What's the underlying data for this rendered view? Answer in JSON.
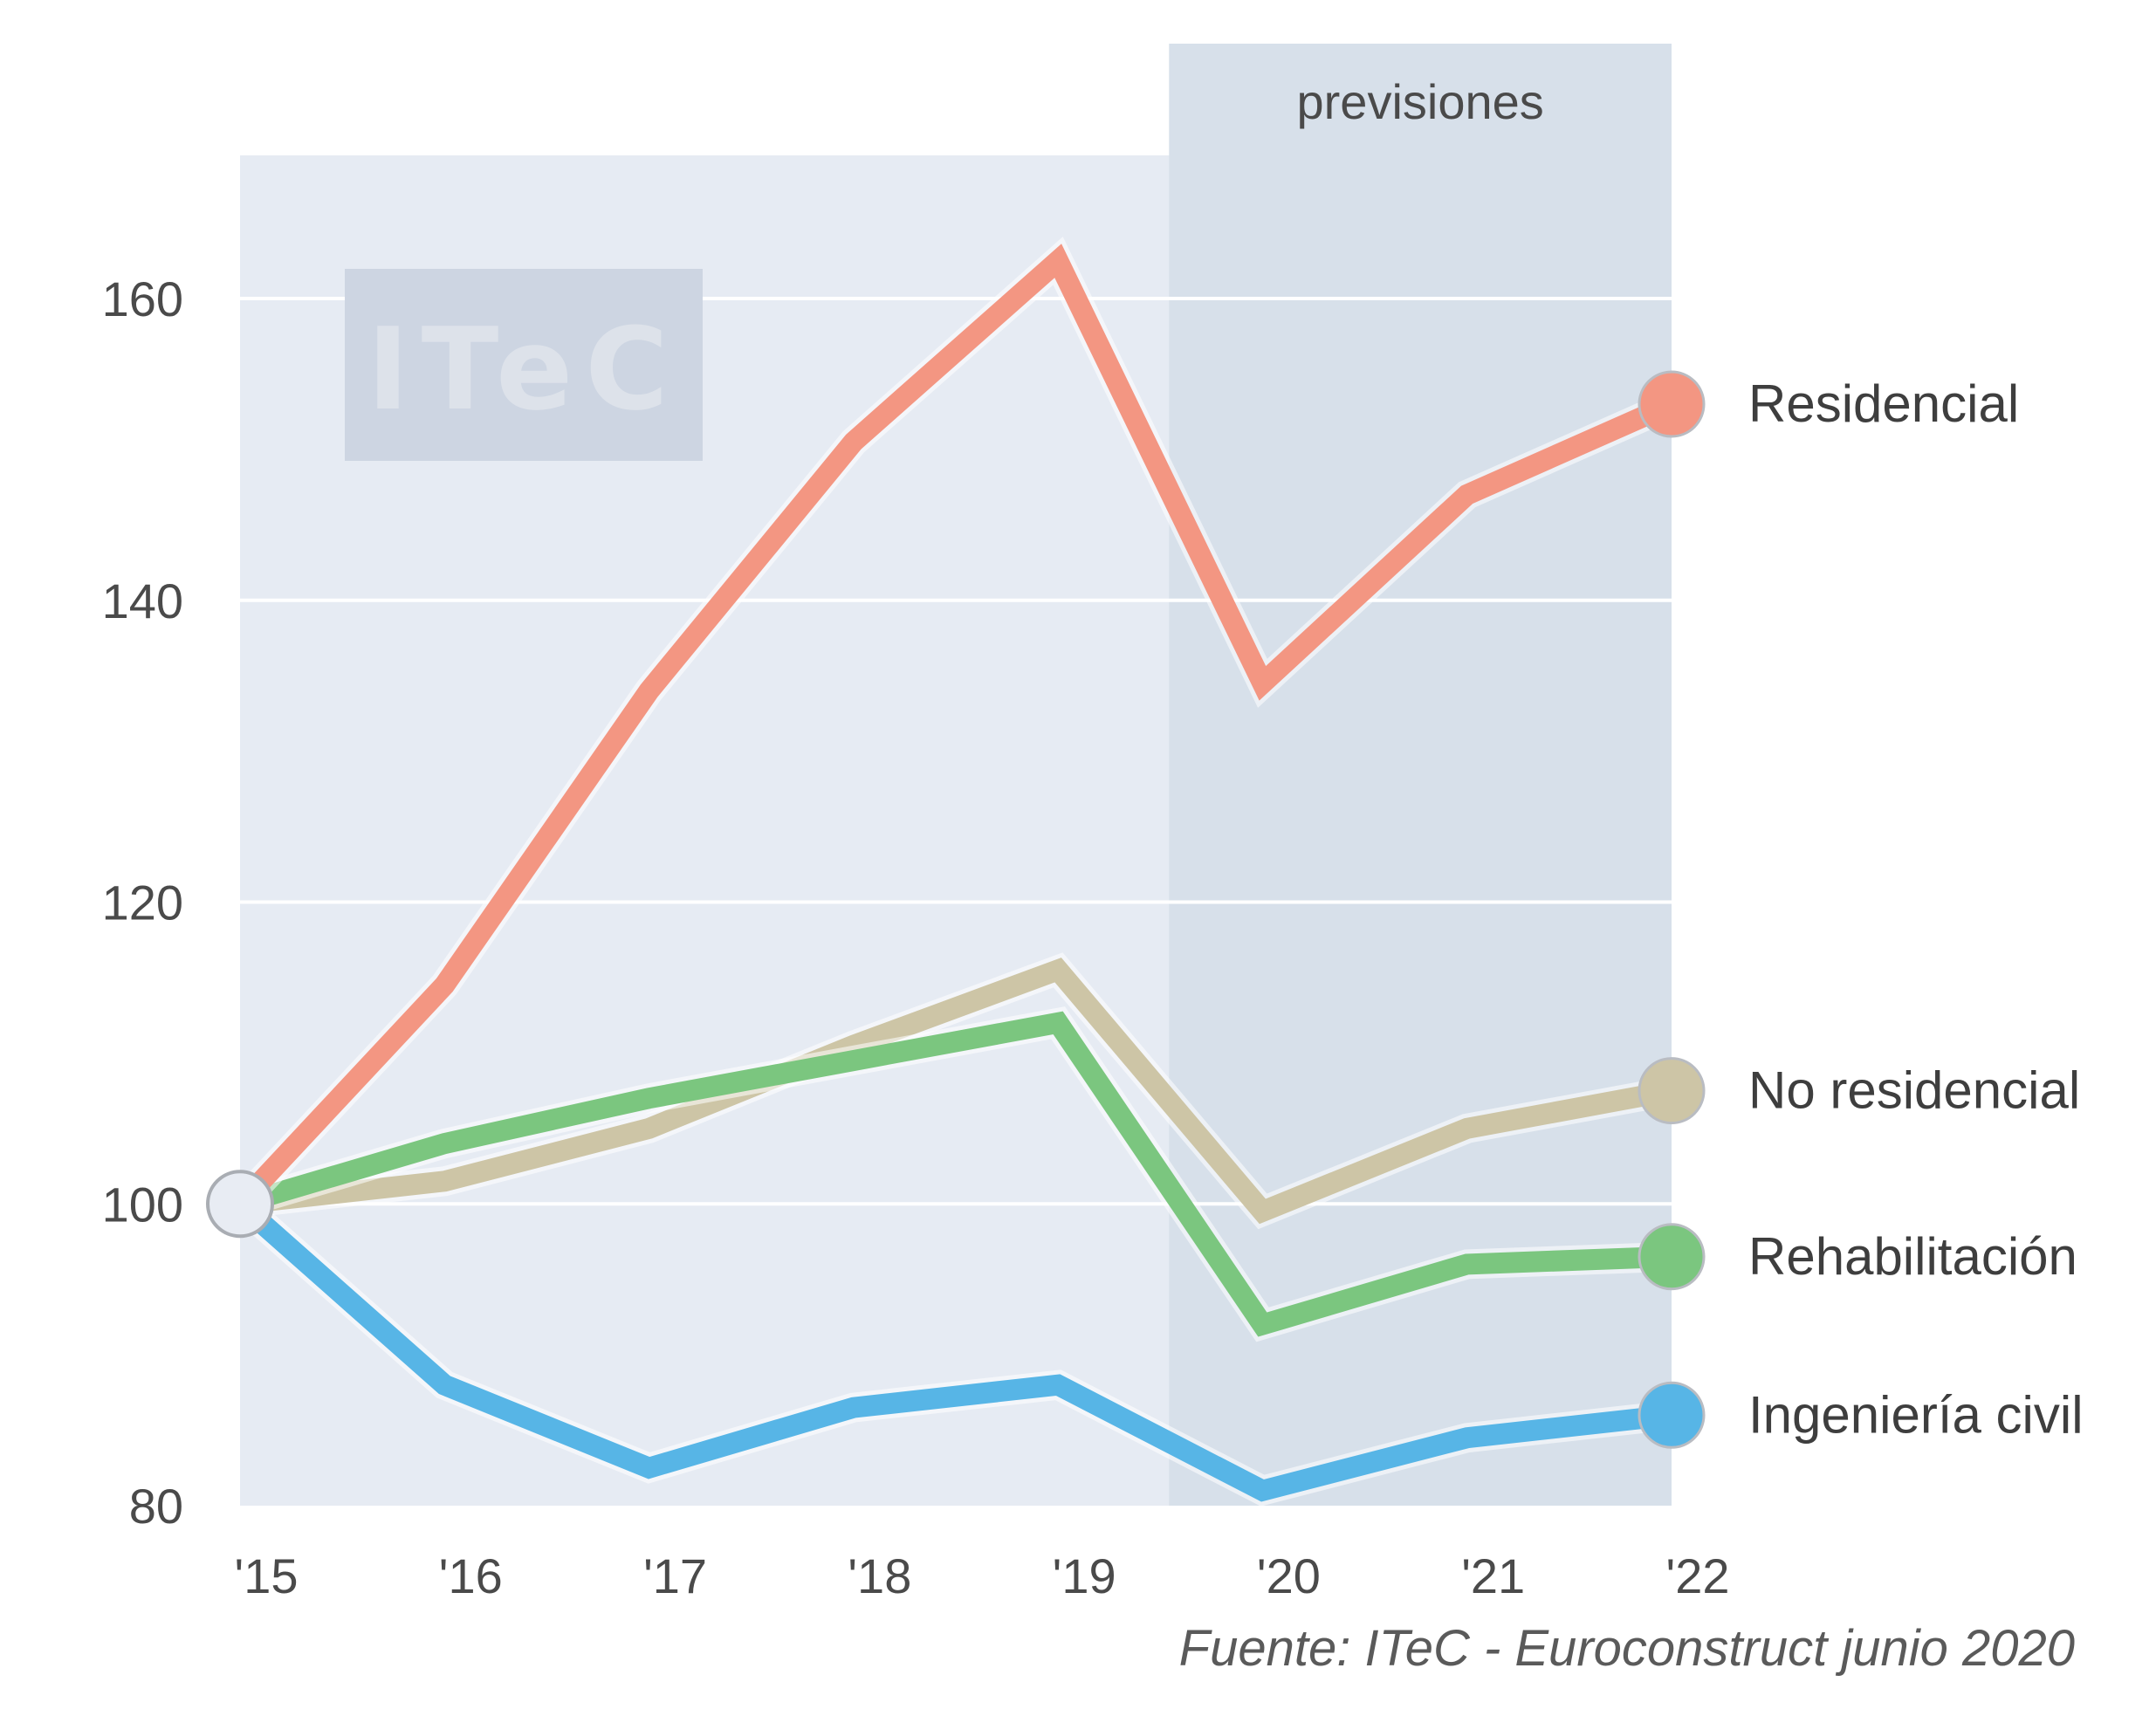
{
  "chart_data": {
    "type": "line",
    "x": [
      "'15",
      "'16",
      "'17",
      "'18",
      "'19",
      "'20",
      "'21",
      "'22"
    ],
    "yticks": [
      80,
      100,
      120,
      140,
      160
    ],
    "ylim": [
      80,
      170
    ],
    "grid": true,
    "forecast": {
      "label": "previsiones",
      "from": "'19",
      "to": "'22"
    },
    "series": [
      {
        "name": "Residencial",
        "color": "#f39682",
        "values": [
          100,
          114.5,
          134,
          150.5,
          162.5,
          134.5,
          147,
          153
        ]
      },
      {
        "name": "No residencial",
        "color": "#cdc5a6",
        "values": [
          100,
          101.5,
          105,
          110.5,
          115.5,
          99.5,
          105,
          107.5
        ]
      },
      {
        "name": "Rehabilitación",
        "color": "#7bc67f",
        "values": [
          100,
          104,
          107,
          109.5,
          112,
          92,
          96,
          96.5
        ]
      },
      {
        "name": "Ingeniería civil",
        "color": "#57b5e6",
        "values": [
          100,
          88,
          82.5,
          86.5,
          88,
          81,
          84.5,
          86
        ]
      }
    ],
    "origin_marker_color": "#e8ecf3",
    "watermark": "ITeC",
    "source": "Fuente: ITeC - Euroconstruct junio 2020",
    "colors": {
      "plot_bg": "#e6ebf3",
      "forecast_bg": "#d7e0ea",
      "grid": "#ffffff",
      "watermark_bg": "#cdd5e2"
    }
  }
}
